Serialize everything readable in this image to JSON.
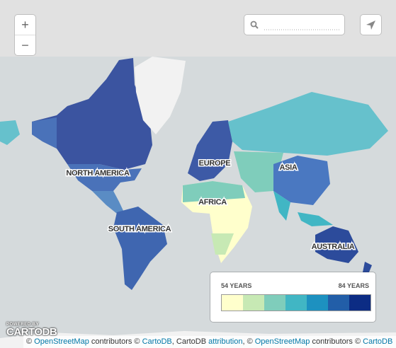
{
  "map": {
    "labels": [
      "NORTH AMERICA",
      "EUROPE",
      "ASIA",
      "AFRICA",
      "SOUTH AMERICA",
      "AUSTRALIA"
    ]
  },
  "controls": {
    "zoom_in": "+",
    "zoom_out": "−"
  },
  "legend": {
    "min_label": "54 YEARS",
    "max_label": "84 YEARS",
    "colors": [
      "#ffffcc",
      "#c7e9b4",
      "#7fcdbb",
      "#41b6c4",
      "#1d91c0",
      "#225ea8",
      "#0c2c84"
    ]
  },
  "logo": {
    "powered_by": "POWERED BY",
    "brand": "CARTODB"
  },
  "attribution": [
    "©",
    "OpenStreetMap",
    "contributors ©",
    "CartoDB",
    ", CartoDB",
    "attribution",
    ", ©",
    "OpenStreetMap",
    "contributors ©",
    "CartoDB"
  ]
}
